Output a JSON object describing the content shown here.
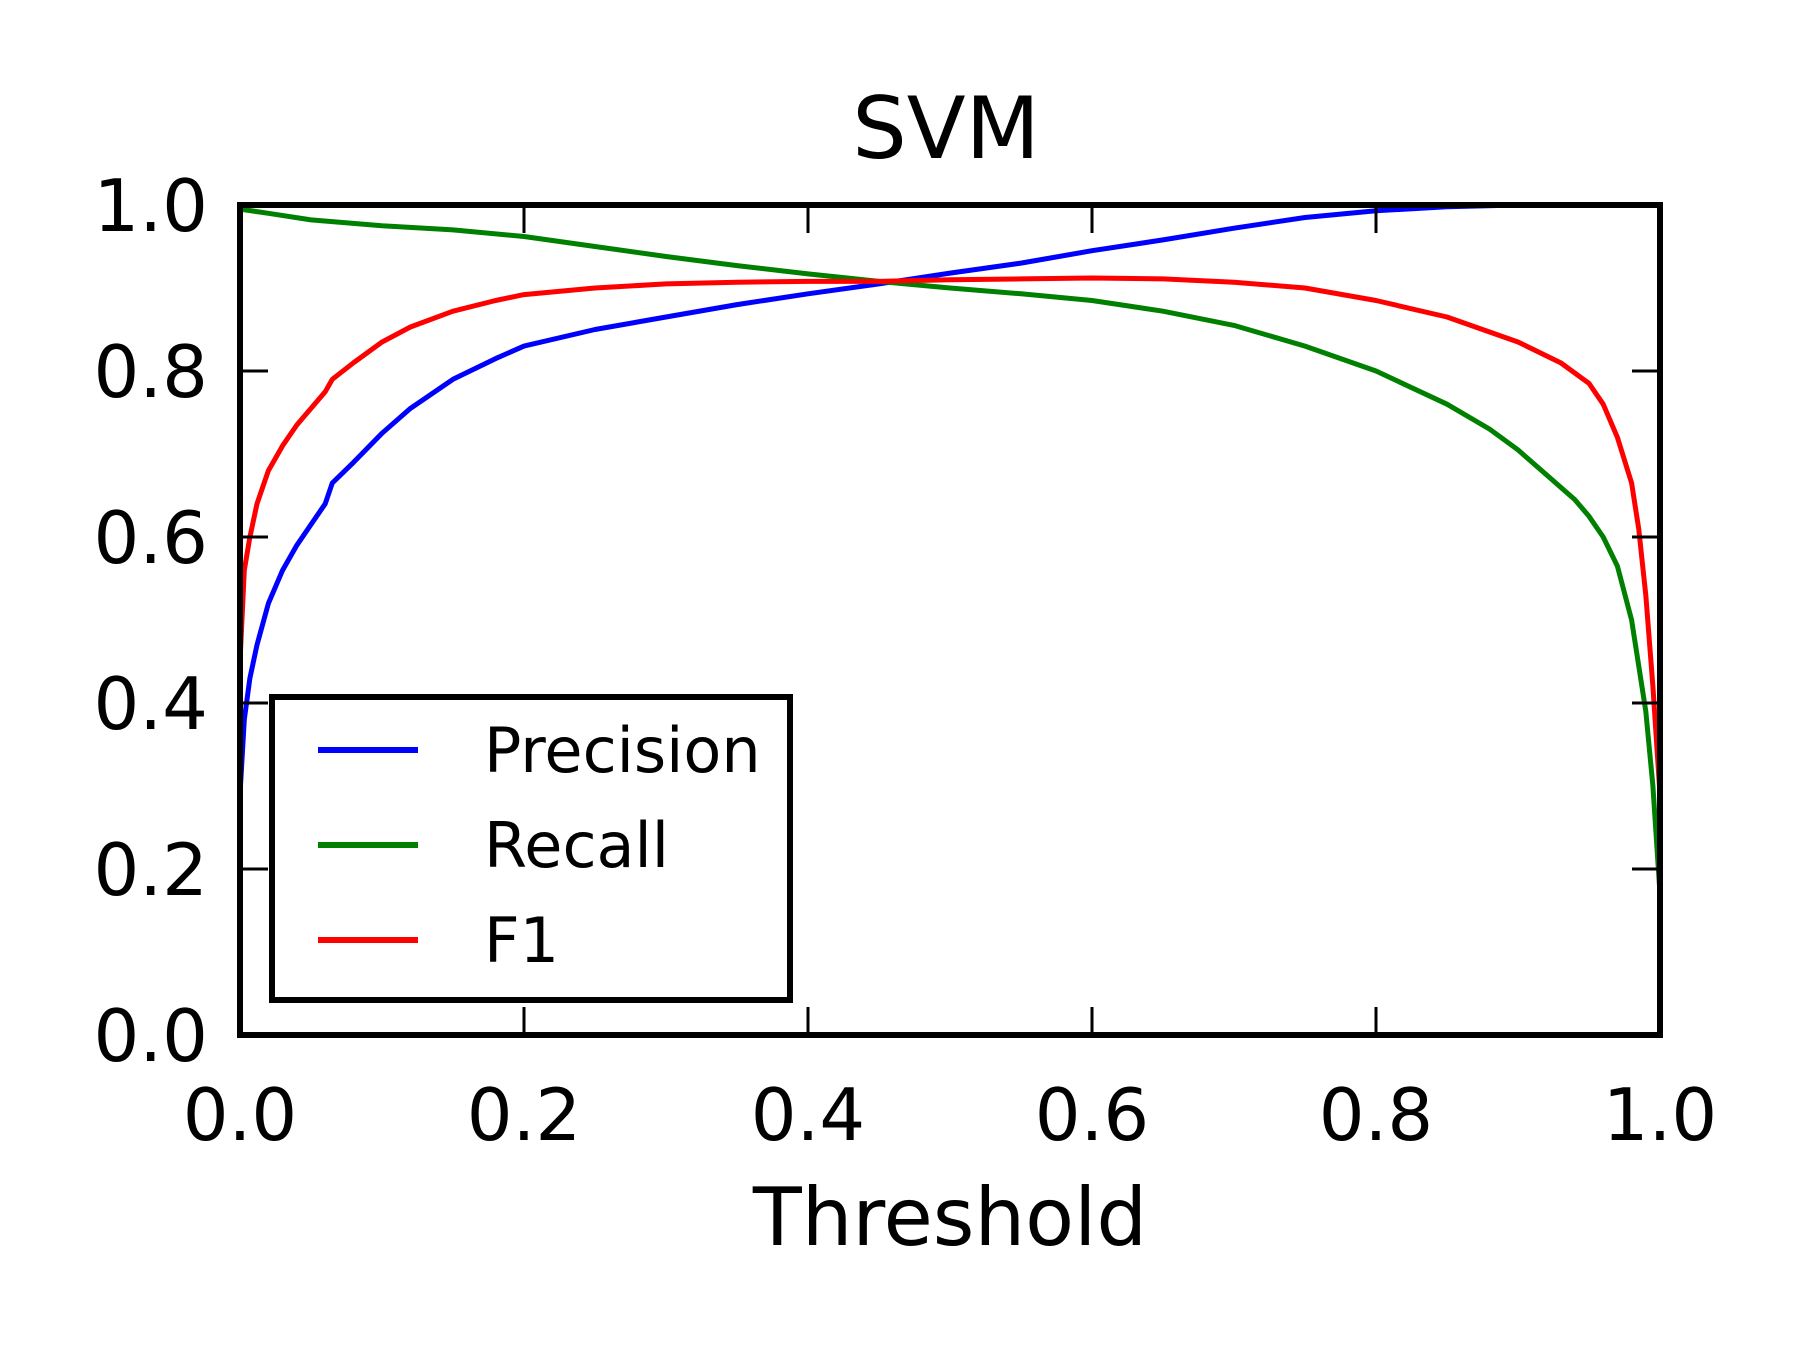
{
  "chart_data": {
    "type": "line",
    "title": "SVM",
    "xlabel": "Threshold",
    "ylabel": "",
    "xlim": [
      0.0,
      1.0
    ],
    "ylim": [
      0.0,
      1.0
    ],
    "xticks": [
      "0.0",
      "0.2",
      "0.4",
      "0.6",
      "0.8",
      "1.0"
    ],
    "yticks": [
      "0.0",
      "0.2",
      "0.4",
      "0.6",
      "0.8",
      "1.0"
    ],
    "grid": false,
    "legend_position": "lower-left",
    "series": [
      {
        "name": "Precision",
        "color": "#0000ff",
        "x": [
          0.0,
          0.003,
          0.007,
          0.012,
          0.02,
          0.03,
          0.04,
          0.05,
          0.06,
          0.065,
          0.08,
          0.1,
          0.12,
          0.15,
          0.18,
          0.2,
          0.25,
          0.3,
          0.35,
          0.4,
          0.45,
          0.5,
          0.55,
          0.6,
          0.65,
          0.7,
          0.75,
          0.8,
          0.85,
          0.9,
          1.0
        ],
        "y": [
          0.29,
          0.38,
          0.43,
          0.47,
          0.52,
          0.56,
          0.59,
          0.615,
          0.64,
          0.665,
          0.69,
          0.725,
          0.755,
          0.79,
          0.815,
          0.83,
          0.85,
          0.865,
          0.88,
          0.893,
          0.905,
          0.918,
          0.93,
          0.945,
          0.958,
          0.972,
          0.985,
          0.993,
          0.998,
          1.0,
          1.0
        ]
      },
      {
        "name": "Recall",
        "color": "#008000",
        "x": [
          0.0,
          0.02,
          0.05,
          0.1,
          0.15,
          0.2,
          0.25,
          0.3,
          0.35,
          0.4,
          0.45,
          0.5,
          0.55,
          0.6,
          0.65,
          0.7,
          0.75,
          0.8,
          0.85,
          0.88,
          0.9,
          0.92,
          0.94,
          0.95,
          0.96,
          0.97,
          0.98,
          0.99,
          0.995,
          1.0
        ],
        "y": [
          0.995,
          0.99,
          0.982,
          0.975,
          0.97,
          0.962,
          0.95,
          0.938,
          0.927,
          0.917,
          0.908,
          0.9,
          0.893,
          0.885,
          0.872,
          0.855,
          0.83,
          0.8,
          0.76,
          0.73,
          0.705,
          0.675,
          0.645,
          0.625,
          0.6,
          0.565,
          0.5,
          0.39,
          0.3,
          0.17
        ]
      },
      {
        "name": "F1",
        "color": "#ff0000",
        "x": [
          0.0,
          0.003,
          0.007,
          0.012,
          0.02,
          0.03,
          0.04,
          0.05,
          0.06,
          0.065,
          0.08,
          0.1,
          0.12,
          0.15,
          0.18,
          0.2,
          0.25,
          0.3,
          0.35,
          0.4,
          0.45,
          0.5,
          0.55,
          0.6,
          0.65,
          0.7,
          0.75,
          0.8,
          0.85,
          0.9,
          0.93,
          0.95,
          0.96,
          0.97,
          0.98,
          0.985,
          0.99,
          0.995,
          1.0
        ],
        "y": [
          0.45,
          0.56,
          0.6,
          0.64,
          0.68,
          0.71,
          0.735,
          0.755,
          0.775,
          0.79,
          0.81,
          0.835,
          0.853,
          0.872,
          0.885,
          0.892,
          0.9,
          0.905,
          0.907,
          0.908,
          0.908,
          0.91,
          0.911,
          0.912,
          0.911,
          0.907,
          0.9,
          0.885,
          0.865,
          0.835,
          0.81,
          0.785,
          0.76,
          0.72,
          0.665,
          0.61,
          0.53,
          0.42,
          0.29
        ]
      }
    ]
  }
}
